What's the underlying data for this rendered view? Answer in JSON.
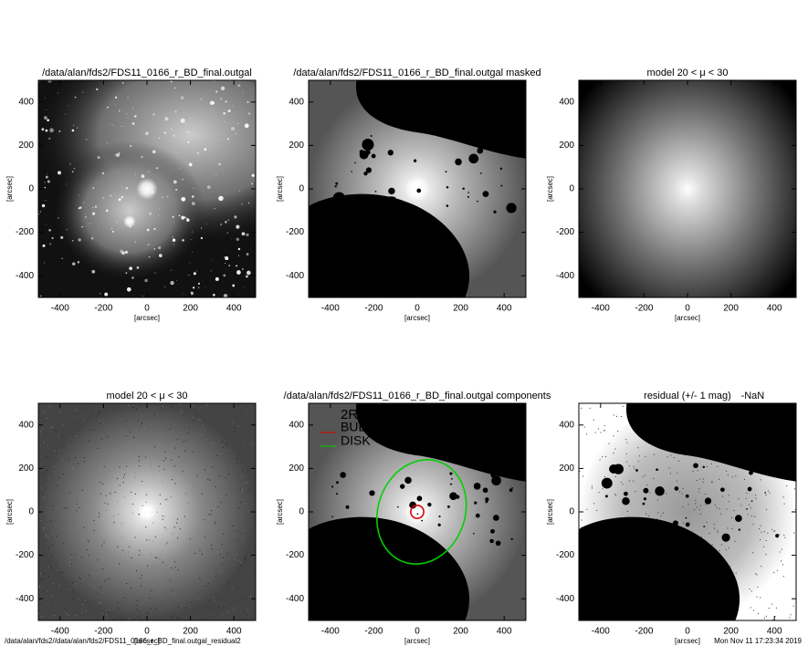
{
  "chart_data": [
    {
      "type": "image",
      "title": "/data/alan/fds2/FDS11_0166_r_BD_final.outgal",
      "xlabel": "[arcsec]",
      "ylabel": "[arcsec]",
      "xlim": [
        -500,
        500
      ],
      "ylim": [
        -500,
        500
      ],
      "xticks": [
        -400,
        -200,
        0,
        200,
        400
      ],
      "yticks": [
        -400,
        -200,
        0,
        200,
        400
      ]
    },
    {
      "type": "image",
      "title": "/data/alan/fds2/FDS11_0166_r_BD_final.outgal masked",
      "xlabel": "[arcsec]",
      "ylabel": "[arcsec]",
      "xlim": [
        -500,
        500
      ],
      "ylim": [
        -500,
        500
      ],
      "xticks": [
        -400,
        -200,
        0,
        200,
        400
      ],
      "yticks": [
        -400,
        -200,
        0,
        200,
        400
      ]
    },
    {
      "type": "image",
      "title": "model 20 < μ < 30",
      "xlabel": "[arcsec]",
      "ylabel": "[arcsec]",
      "xlim": [
        -500,
        500
      ],
      "ylim": [
        -500,
        500
      ],
      "xticks": [
        -400,
        -200,
        0,
        200,
        400
      ],
      "yticks": [
        -400,
        -200,
        0,
        200,
        400
      ]
    },
    {
      "type": "image",
      "title": "model 20 < μ < 30",
      "xlabel": "[arcsec]",
      "ylabel": "[arcsec]",
      "xlim": [
        -500,
        500
      ],
      "ylim": [
        -500,
        500
      ],
      "xticks": [
        -400,
        -200,
        0,
        200,
        400
      ],
      "yticks": [
        -400,
        -200,
        0,
        200,
        400
      ]
    },
    {
      "type": "image",
      "title": "/data/alan/fds2/FDS11_0166_r_BD_final.outgal components",
      "xlabel": "[arcsec]",
      "ylabel": "[arcsec]",
      "xlim": [
        -500,
        500
      ],
      "ylim": [
        -500,
        500
      ],
      "xticks": [
        -400,
        -200,
        0,
        200,
        400
      ],
      "yticks": [
        -400,
        -200,
        0,
        200,
        400
      ],
      "legend_title": "2Re contours:",
      "series": [
        {
          "name": "BULGE",
          "color": "#e00000",
          "center": [
            0,
            0
          ],
          "radii": [
            30,
            30
          ],
          "angle": 0
        },
        {
          "name": "DISK",
          "color": "#00d000",
          "center": [
            20,
            0
          ],
          "radii": [
            200,
            245
          ],
          "angle": 20
        }
      ]
    },
    {
      "type": "image",
      "title": "residual  (+/- 1 mag)",
      "subtitle": "-NaN",
      "xlabel": "[arcsec]",
      "ylabel": "[arcsec]",
      "xlim": [
        -500,
        500
      ],
      "ylim": [
        -500,
        500
      ],
      "xticks": [
        -400,
        -200,
        0,
        200,
        400
      ],
      "yticks": [
        -400,
        -200,
        0,
        200,
        400
      ]
    }
  ],
  "footer": {
    "left": "/data/alan/fds2//data/alan/fds2/FDS11_0166_r_BD_final.outgal_residual2",
    "right": "Mon Nov 11 17:23:34 2019"
  }
}
